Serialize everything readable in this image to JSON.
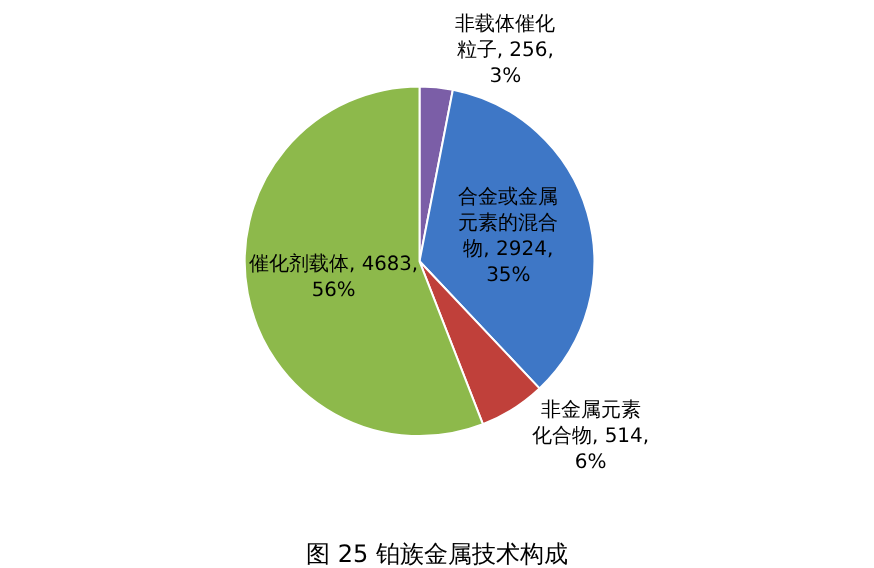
{
  "chart_data": {
    "type": "pie",
    "title": "图 25 铂族金属技术构成",
    "categories": [
      "非载体催化粒子",
      "合金或金属元素的混合物",
      "非金属元素化合物",
      "催化剂载体"
    ],
    "values": [
      256,
      2924,
      514,
      4683
    ],
    "value_labels": [
      ", 256, 3%",
      ", 2924, 35%",
      ", 514, 6%",
      ", 4683, 56%"
    ],
    "colors": [
      "#7b5ea7",
      "#3e77c6",
      "#c0403a",
      "#8db94b"
    ],
    "legend": false
  }
}
